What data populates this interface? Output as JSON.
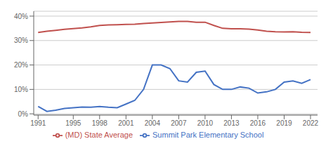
{
  "chart_data": {
    "type": "line",
    "x": [
      1991,
      1992,
      1993,
      1994,
      1995,
      1996,
      1997,
      1998,
      1999,
      2000,
      2001,
      2002,
      2003,
      2004,
      2005,
      2006,
      2007,
      2008,
      2009,
      2010,
      2011,
      2012,
      2013,
      2014,
      2015,
      2016,
      2017,
      2018,
      2019,
      2020,
      2021,
      2022
    ],
    "series": [
      {
        "name": "Summit Park Elementary School",
        "color": "#4472c4",
        "values": [
          0.03,
          0.01,
          0.015,
          0.022,
          0.025,
          0.028,
          0.027,
          0.03,
          0.027,
          0.025,
          0.04,
          0.055,
          0.1,
          0.2,
          0.2,
          0.185,
          0.135,
          0.13,
          0.17,
          0.175,
          0.12,
          0.1,
          0.1,
          0.11,
          0.105,
          0.085,
          0.09,
          0.1,
          0.13,
          0.135,
          0.125,
          0.14
        ]
      },
      {
        "name": "(MD) State Average",
        "color": "#c0504d",
        "values": [
          0.333,
          0.338,
          0.342,
          0.346,
          0.349,
          0.352,
          0.356,
          0.362,
          0.364,
          0.365,
          0.366,
          0.367,
          0.37,
          0.372,
          0.374,
          0.376,
          0.378,
          0.378,
          0.375,
          0.375,
          0.362,
          0.35,
          0.348,
          0.348,
          0.347,
          0.343,
          0.338,
          0.336,
          0.335,
          0.336,
          0.334,
          0.333
        ]
      }
    ],
    "xlim": [
      1990.5,
      2022.8
    ],
    "xticks": [
      1991,
      1995,
      1998,
      2001,
      2004,
      2007,
      2010,
      2013,
      2016,
      2019,
      2022
    ],
    "ylim": [
      -0.005,
      0.42
    ],
    "yticks": [
      {
        "value": 0.0,
        "label": "0%"
      },
      {
        "value": 0.1,
        "label": "10%"
      },
      {
        "value": 0.2,
        "label": "20%"
      },
      {
        "value": 0.3,
        "label": "30%"
      },
      {
        "value": 0.4,
        "label": "40%"
      }
    ],
    "grid": true,
    "legend": "bottom"
  }
}
